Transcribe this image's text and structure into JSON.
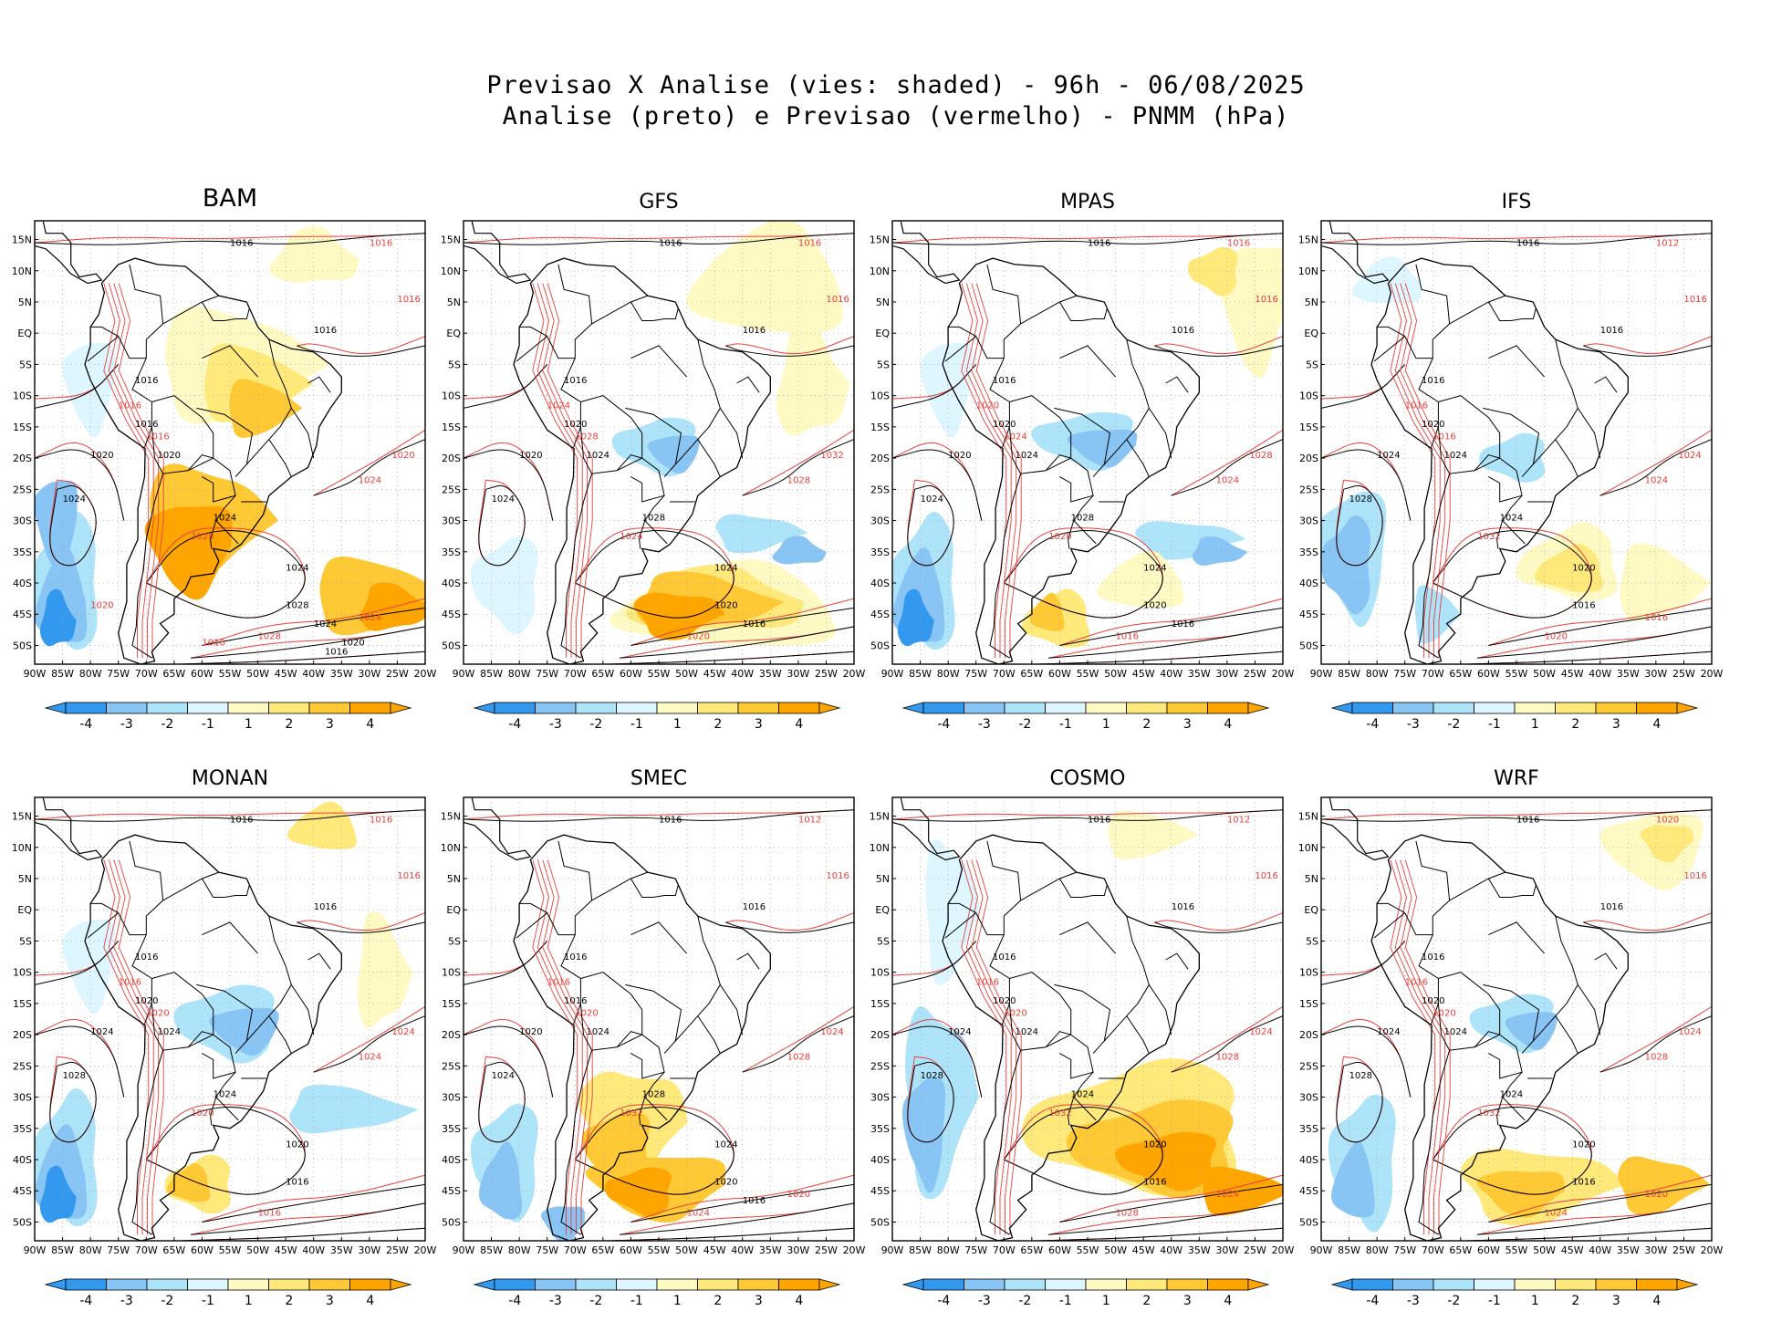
{
  "title": {
    "line1": "Previsao X Analise (vies: shaded) - 96h - 06/08/2025",
    "line2": "Analise (preto) e Previsao (vermelho) - PNMM (hPa)"
  },
  "colors": {
    "neg4": "#3399ee",
    "neg3": "#88c4f4",
    "neg2": "#aee4fa",
    "neg1": "#def6ff",
    "pos1": "#fff9c4",
    "pos2": "#ffe97a",
    "pos3": "#ffc835",
    "pos4": "#ffa500",
    "analysis_line": "#000000",
    "forecast_line": "#e8413c",
    "land_line": "#000000"
  },
  "lat_labels": [
    "15N",
    "10N",
    "5N",
    "EQ",
    "5S",
    "10S",
    "15S",
    "20S",
    "25S",
    "30S",
    "35S",
    "40S",
    "45S",
    "50S"
  ],
  "lon_labels": [
    "90W",
    "85W",
    "80W",
    "75W",
    "70W",
    "65W",
    "60W",
    "55W",
    "50W",
    "45W",
    "40W",
    "35W",
    "30W",
    "25W",
    "20W"
  ],
  "colorbar_labels": [
    "-4",
    "-3",
    "-2",
    "-1",
    "1",
    "2",
    "3",
    "4"
  ],
  "panels": [
    {
      "name": "BAM",
      "big": true,
      "black_labels": [
        "1016",
        "1016",
        "1016",
        "1016",
        "1020",
        "1020",
        "1024",
        "1024",
        "1024",
        "1028",
        "1024",
        "1020",
        "1016"
      ],
      "red_labels": [
        "1016",
        "1016",
        "1016",
        "1016",
        "1020",
        "1024",
        "1028",
        "1028",
        "1024",
        "1020",
        "1016"
      ]
    },
    {
      "name": "GFS",
      "black_labels": [
        "1016",
        "1016",
        "1016",
        "1020",
        "1020",
        "1024",
        "1024",
        "1028",
        "1024",
        "1020",
        "1016"
      ],
      "red_labels": [
        "1016",
        "1016",
        "1024",
        "1028",
        "1032",
        "1028",
        "1024",
        "1020"
      ]
    },
    {
      "name": "MPAS",
      "black_labels": [
        "1016",
        "1016",
        "1016",
        "1020",
        "1020",
        "1024",
        "1024",
        "1028",
        "1024",
        "1020",
        "1016"
      ],
      "red_labels": [
        "1016",
        "1016",
        "1020",
        "1024",
        "1028",
        "1024",
        "1020",
        "1016"
      ]
    },
    {
      "name": "IFS",
      "black_labels": [
        "1016",
        "1016",
        "1016",
        "1020",
        "1024",
        "1024",
        "1028",
        "1024",
        "1020",
        "1016"
      ],
      "red_labels": [
        "1012",
        "1016",
        "1016",
        "1016",
        "1024",
        "1024",
        "1032",
        "1020",
        "1016"
      ]
    },
    {
      "name": "MONAN",
      "black_labels": [
        "1016",
        "1016",
        "1016",
        "1020",
        "1024",
        "1024",
        "1028",
        "1024",
        "1020",
        "1016"
      ],
      "red_labels": [
        "1016",
        "1016",
        "1016",
        "1020",
        "1024",
        "1024",
        "1020",
        "1016"
      ]
    },
    {
      "name": "SMEC",
      "black_labels": [
        "1016",
        "1016",
        "1016",
        "1016",
        "1020",
        "1024",
        "1024",
        "1028",
        "1024",
        "1020",
        "1016"
      ],
      "red_labels": [
        "1012",
        "1016",
        "1016",
        "1020",
        "1024",
        "1028",
        "1032",
        "1024",
        "1020"
      ]
    },
    {
      "name": "COSMO",
      "black_labels": [
        "1016",
        "1016",
        "1016",
        "1020",
        "1024",
        "1024",
        "1028",
        "1024",
        "1020",
        "1016"
      ],
      "red_labels": [
        "1012",
        "1016",
        "1016",
        "1020",
        "1024",
        "1028",
        "1032",
        "1028",
        "1024"
      ]
    },
    {
      "name": "WRF",
      "black_labels": [
        "1016",
        "1016",
        "1016",
        "1020",
        "1024",
        "1024",
        "1028",
        "1024",
        "1020",
        "1016"
      ],
      "red_labels": [
        "1020",
        "1016",
        "1016",
        "1020",
        "1024",
        "1028",
        "1032",
        "1024",
        "1020"
      ]
    }
  ]
}
